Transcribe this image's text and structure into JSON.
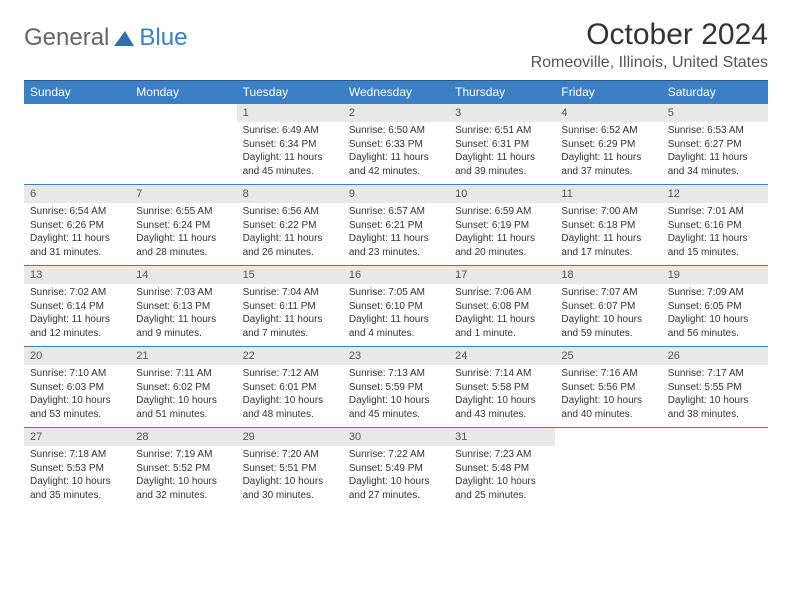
{
  "logo": {
    "text1": "General",
    "text2": "Blue",
    "icon_color": "#2f6fb0"
  },
  "title": "October 2024",
  "location": "Romeoville, Illinois, United States",
  "colors": {
    "header_bg": "#3b7fc4",
    "daynum_bg": "#e8e8e8",
    "border": "#3b7fc4"
  },
  "weekdays": [
    "Sunday",
    "Monday",
    "Tuesday",
    "Wednesday",
    "Thursday",
    "Friday",
    "Saturday"
  ],
  "leading_blanks": 2,
  "days": [
    {
      "n": 1,
      "sunrise": "6:49 AM",
      "sunset": "6:34 PM",
      "daylight": "11 hours and 45 minutes."
    },
    {
      "n": 2,
      "sunrise": "6:50 AM",
      "sunset": "6:33 PM",
      "daylight": "11 hours and 42 minutes."
    },
    {
      "n": 3,
      "sunrise": "6:51 AM",
      "sunset": "6:31 PM",
      "daylight": "11 hours and 39 minutes."
    },
    {
      "n": 4,
      "sunrise": "6:52 AM",
      "sunset": "6:29 PM",
      "daylight": "11 hours and 37 minutes."
    },
    {
      "n": 5,
      "sunrise": "6:53 AM",
      "sunset": "6:27 PM",
      "daylight": "11 hours and 34 minutes."
    },
    {
      "n": 6,
      "sunrise": "6:54 AM",
      "sunset": "6:26 PM",
      "daylight": "11 hours and 31 minutes."
    },
    {
      "n": 7,
      "sunrise": "6:55 AM",
      "sunset": "6:24 PM",
      "daylight": "11 hours and 28 minutes."
    },
    {
      "n": 8,
      "sunrise": "6:56 AM",
      "sunset": "6:22 PM",
      "daylight": "11 hours and 26 minutes."
    },
    {
      "n": 9,
      "sunrise": "6:57 AM",
      "sunset": "6:21 PM",
      "daylight": "11 hours and 23 minutes."
    },
    {
      "n": 10,
      "sunrise": "6:59 AM",
      "sunset": "6:19 PM",
      "daylight": "11 hours and 20 minutes."
    },
    {
      "n": 11,
      "sunrise": "7:00 AM",
      "sunset": "6:18 PM",
      "daylight": "11 hours and 17 minutes."
    },
    {
      "n": 12,
      "sunrise": "7:01 AM",
      "sunset": "6:16 PM",
      "daylight": "11 hours and 15 minutes."
    },
    {
      "n": 13,
      "sunrise": "7:02 AM",
      "sunset": "6:14 PM",
      "daylight": "11 hours and 12 minutes."
    },
    {
      "n": 14,
      "sunrise": "7:03 AM",
      "sunset": "6:13 PM",
      "daylight": "11 hours and 9 minutes."
    },
    {
      "n": 15,
      "sunrise": "7:04 AM",
      "sunset": "6:11 PM",
      "daylight": "11 hours and 7 minutes."
    },
    {
      "n": 16,
      "sunrise": "7:05 AM",
      "sunset": "6:10 PM",
      "daylight": "11 hours and 4 minutes."
    },
    {
      "n": 17,
      "sunrise": "7:06 AM",
      "sunset": "6:08 PM",
      "daylight": "11 hours and 1 minute."
    },
    {
      "n": 18,
      "sunrise": "7:07 AM",
      "sunset": "6:07 PM",
      "daylight": "10 hours and 59 minutes."
    },
    {
      "n": 19,
      "sunrise": "7:09 AM",
      "sunset": "6:05 PM",
      "daylight": "10 hours and 56 minutes."
    },
    {
      "n": 20,
      "sunrise": "7:10 AM",
      "sunset": "6:03 PM",
      "daylight": "10 hours and 53 minutes."
    },
    {
      "n": 21,
      "sunrise": "7:11 AM",
      "sunset": "6:02 PM",
      "daylight": "10 hours and 51 minutes."
    },
    {
      "n": 22,
      "sunrise": "7:12 AM",
      "sunset": "6:01 PM",
      "daylight": "10 hours and 48 minutes."
    },
    {
      "n": 23,
      "sunrise": "7:13 AM",
      "sunset": "5:59 PM",
      "daylight": "10 hours and 45 minutes."
    },
    {
      "n": 24,
      "sunrise": "7:14 AM",
      "sunset": "5:58 PM",
      "daylight": "10 hours and 43 minutes."
    },
    {
      "n": 25,
      "sunrise": "7:16 AM",
      "sunset": "5:56 PM",
      "daylight": "10 hours and 40 minutes."
    },
    {
      "n": 26,
      "sunrise": "7:17 AM",
      "sunset": "5:55 PM",
      "daylight": "10 hours and 38 minutes."
    },
    {
      "n": 27,
      "sunrise": "7:18 AM",
      "sunset": "5:53 PM",
      "daylight": "10 hours and 35 minutes."
    },
    {
      "n": 28,
      "sunrise": "7:19 AM",
      "sunset": "5:52 PM",
      "daylight": "10 hours and 32 minutes."
    },
    {
      "n": 29,
      "sunrise": "7:20 AM",
      "sunset": "5:51 PM",
      "daylight": "10 hours and 30 minutes."
    },
    {
      "n": 30,
      "sunrise": "7:22 AM",
      "sunset": "5:49 PM",
      "daylight": "10 hours and 27 minutes."
    },
    {
      "n": 31,
      "sunrise": "7:23 AM",
      "sunset": "5:48 PM",
      "daylight": "10 hours and 25 minutes."
    }
  ],
  "labels": {
    "sunrise": "Sunrise:",
    "sunset": "Sunset:",
    "daylight": "Daylight:"
  }
}
